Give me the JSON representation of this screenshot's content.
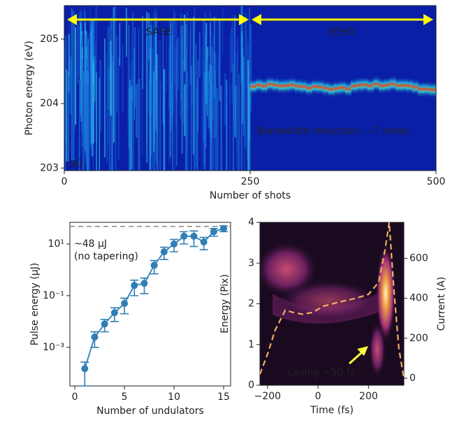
{
  "chart_data": [
    {
      "type": "heatmap",
      "xlabel": "Number of shots",
      "ylabel": "Photon energy (eV)",
      "xlim": [
        0,
        500
      ],
      "xticks": [
        0,
        250,
        500
      ],
      "ylim": [
        202.96,
        205.52
      ],
      "yticks": [
        203,
        204,
        205
      ],
      "annotations": [
        "SASE",
        "EEHG",
        "Bandwidth reduction: ~7 times",
        "(a)"
      ],
      "arrow_color": "#ffff00"
    },
    {
      "type": "errorbar",
      "xlabel": "Number of undulators",
      "ylabel": "Pulse energy (μJ)",
      "log_y": true,
      "x": [
        1,
        2,
        3,
        4,
        5,
        6,
        7,
        8,
        9,
        10,
        11,
        12,
        13,
        14,
        15
      ],
      "values": [
        0.00015,
        0.0025,
        0.008,
        0.022,
        0.05,
        0.25,
        0.3,
        1.5,
        5,
        10,
        20,
        20,
        12,
        30,
        40
      ],
      "errors": [
        0.00012,
        0.0015,
        0.004,
        0.012,
        0.03,
        0.15,
        0.18,
        0.8,
        2.5,
        5,
        10,
        12,
        6,
        10,
        10
      ],
      "color": "#2f7fb5",
      "xlim": [
        -0.5,
        15.7
      ],
      "xticks": [
        0,
        5,
        10,
        15
      ],
      "ylim": [
        3.2e-05,
        69
      ],
      "yticks": [
        {
          "value": 0.001,
          "label": "10⁻³"
        },
        {
          "value": 0.1,
          "label": "10⁻¹"
        },
        {
          "value": 10,
          "label": "10¹"
        }
      ],
      "hline": 48,
      "annotations": [
        "~48 μJ",
        "(no tapering)"
      ]
    },
    {
      "type": "heatmap_line",
      "xlabel": "Time (fs)",
      "ylabel": "Energy (Pix)",
      "y2label": "Current (A)",
      "xlim": [
        -230,
        340
      ],
      "xticks": [
        {
          "value": -200,
          "label": "−200"
        },
        0,
        200
      ],
      "ylim": [
        0,
        4
      ],
      "yticks": [
        0,
        1,
        2,
        3,
        4
      ],
      "y2lim": [
        -35,
        780
      ],
      "y2ticks": [
        0,
        200,
        400,
        600
      ],
      "series": [
        {
          "name": "Current (A)",
          "color": "#f0b060",
          "axis": "y2",
          "x": [
            -230,
            -200,
            -170,
            -130,
            -100,
            -60,
            -20,
            20,
            80,
            150,
            200,
            240,
            265,
            282,
            300,
            320,
            340
          ],
          "values": [
            20,
            120,
            240,
            340,
            330,
            320,
            330,
            360,
            380,
            400,
            420,
            480,
            640,
            780,
            450,
            150,
            0
          ]
        }
      ],
      "annotations": [
        "Lasing ~50 fs"
      ]
    }
  ]
}
